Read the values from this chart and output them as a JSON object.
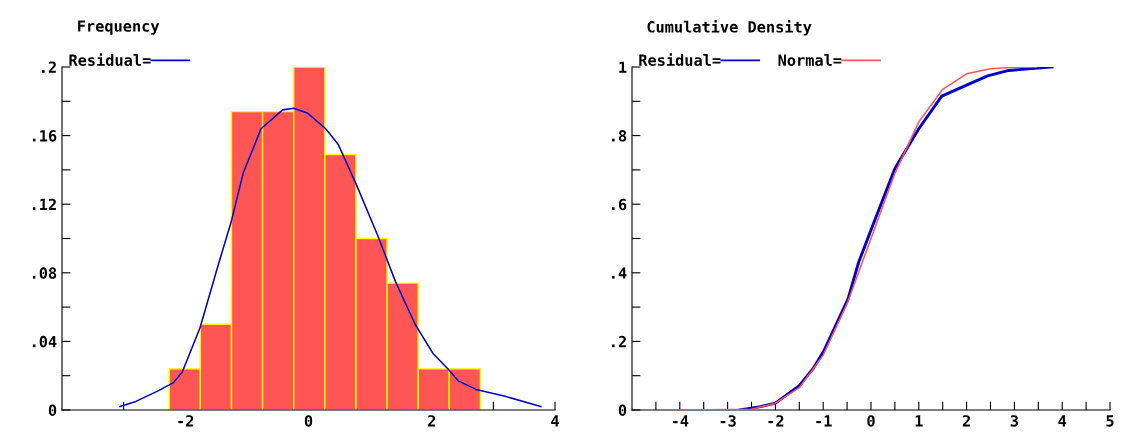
{
  "chart_data": [
    {
      "type": "histogram",
      "title": "Frequency",
      "legend": "top left",
      "color": "#ff5555",
      "bins": [
        -2.26,
        -1.755,
        -1.25,
        -0.745,
        -0.24,
        0.265,
        0.77,
        1.275,
        1.78,
        2.285,
        2.79
      ],
      "values": [
        0.024,
        0.05,
        0.174,
        0.174,
        0.2,
        0.149,
        0.1,
        0.074,
        0.024,
        0.024
      ],
      "series": [
        {
          "name": "Residual=",
          "type": "line",
          "color": "#0000cc",
          "x": [
            -3.06,
            -2.8,
            -2.45,
            -2.19,
            -2.05,
            -1.76,
            -1.47,
            -1.26,
            -1.06,
            -0.77,
            -0.42,
            -0.24,
            -0.01,
            0.28,
            0.48,
            0.77,
            1.12,
            1.41,
            1.73,
            2.02,
            2.26,
            2.43,
            2.72,
            3.19,
            3.77
          ],
          "values": [
            0.002,
            0.005,
            0.011,
            0.016,
            0.022,
            0.048,
            0.084,
            0.109,
            0.138,
            0.164,
            0.175,
            0.176,
            0.173,
            0.164,
            0.155,
            0.132,
            0.102,
            0.075,
            0.05,
            0.033,
            0.024,
            0.017,
            0.012,
            0.008,
            0.002
          ]
        }
      ],
      "xlim": [
        -4,
        4
      ],
      "xticks": [
        {
          "value": -3,
          "label": null
        },
        -2,
        {
          "value": -1,
          "label": null
        },
        0,
        {
          "value": 1,
          "label": null
        },
        2,
        {
          "value": 3,
          "label": null
        },
        4
      ],
      "ylim": [
        0,
        0.2
      ],
      "yticks": [
        0,
        {
          "value": 0.02,
          "label": null
        },
        {
          "value": 0.04,
          "label": ".04"
        },
        {
          "value": 0.06,
          "label": null
        },
        {
          "value": 0.08,
          "label": ".08"
        },
        {
          "value": 0.1,
          "label": null
        },
        {
          "value": 0.12,
          "label": ".12"
        },
        {
          "value": 0.14,
          "label": null
        },
        {
          "value": 0.16,
          "label": ".16"
        },
        {
          "value": 0.18,
          "label": null
        },
        {
          "value": 0.2,
          "label": ".2"
        }
      ]
    },
    {
      "type": "line",
      "title": "Cumulative Density",
      "legend": "top left",
      "series": [
        {
          "name": "Residual=",
          "color": "#0000cc",
          "x": [
            -2.74,
            -2.31,
            -2.0,
            -1.5,
            -1.21,
            -0.99,
            -0.48,
            -0.26,
            0.0,
            0.5,
            1.0,
            1.48,
            2.0,
            2.44,
            2.88,
            3.79
          ],
          "values": [
            0.0,
            0.01,
            0.02,
            0.071,
            0.121,
            0.171,
            0.324,
            0.43,
            0.525,
            0.704,
            0.82,
            0.915,
            0.947,
            0.974,
            0.99,
            1.0
          ]
        },
        {
          "name": "Normal=",
          "color": "#ff5555",
          "x": [
            -4.0,
            -2.5,
            -2.0,
            -1.5,
            -1.0,
            -0.5,
            0.0,
            0.5,
            1.0,
            1.5,
            2.0,
            2.5,
            3.0,
            3.46
          ],
          "values": [
            0.0,
            0.002,
            0.02,
            0.065,
            0.16,
            0.31,
            0.5,
            0.69,
            0.84,
            0.935,
            0.98,
            0.995,
            0.999,
            1.0
          ]
        }
      ],
      "xlim": [
        -5,
        5
      ],
      "xticks": [
        {
          "value": -4.5,
          "label": null
        },
        -4,
        {
          "value": -3.5,
          "label": null
        },
        -3,
        {
          "value": -2.5,
          "label": null
        },
        -2,
        {
          "value": -1.5,
          "label": null
        },
        -1,
        {
          "value": -0.5,
          "label": null
        },
        0,
        {
          "value": 0.5,
          "label": null
        },
        1,
        {
          "value": 1.5,
          "label": null
        },
        2,
        {
          "value": 2.5,
          "label": null
        },
        3,
        {
          "value": 3.5,
          "label": null
        },
        4,
        {
          "value": 4.5,
          "label": null
        },
        5
      ],
      "ylim": [
        0,
        1
      ],
      "yticks": [
        0,
        {
          "value": 0.1,
          "label": null
        },
        {
          "value": 0.2,
          "label": ".2"
        },
        {
          "value": 0.3,
          "label": null
        },
        {
          "value": 0.4,
          "label": ".4"
        },
        {
          "value": 0.5,
          "label": null
        },
        {
          "value": 0.6,
          "label": ".6"
        },
        {
          "value": 0.7,
          "label": null
        },
        {
          "value": 0.8,
          "label": ".8"
        },
        {
          "value": 0.9,
          "label": null
        },
        1
      ]
    }
  ]
}
